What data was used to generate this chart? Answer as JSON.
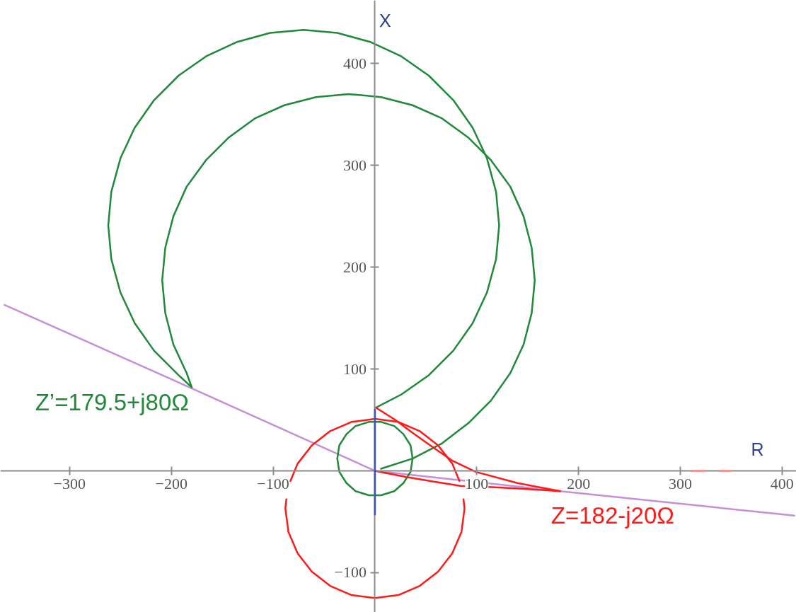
{
  "chart_data": {
    "type": "line",
    "xlabel": "R",
    "ylabel": "X",
    "xlim": [
      -368,
      414
    ],
    "ylim": [
      -139,
      462
    ],
    "xticks": [
      {
        "value": -300,
        "label": "−300"
      },
      {
        "value": -200,
        "label": "−200"
      },
      {
        "value": -100,
        "label": "−100"
      },
      100,
      200,
      300,
      400
    ],
    "yticks": [
      {
        "value": -100,
        "label": "−100"
      },
      100,
      200,
      300,
      400
    ],
    "grid": false,
    "annotations": [
      {
        "text": "Z’=179.5+j80Ω",
        "x": -180,
        "y": 82
      },
      {
        "text": "Z=182-j20Ω",
        "x": 182,
        "y": -20
      }
    ],
    "series": [
      {
        "color": "#c68fd6",
        "x": [
          -364,
          -180,
          0,
          182,
          412
        ],
        "values": [
          163,
          81,
          0,
          -20,
          -44
        ]
      },
      {
        "color": "#22883a",
        "x": [
          -180,
          -193,
          -217,
          -236,
          -250,
          -259,
          -262,
          -259,
          -250,
          -236,
          -217,
          -193,
          -166,
          -136,
          -103,
          -70,
          -37,
          -4,
          26,
          53,
          77,
          96,
          110,
          119,
          122,
          119,
          110,
          96,
          77,
          53,
          26,
          1
        ],
        "values": [
          82,
          94,
          118,
          145,
          175,
          208,
          241,
          274,
          307,
          337,
          364,
          388,
          407,
          421,
          430,
          433,
          430,
          421,
          407,
          388,
          364,
          337,
          307,
          274,
          241,
          208,
          175,
          145,
          118,
          94,
          75,
          62
        ]
      },
      {
        "color": "#22883a",
        "x": [
          -180,
          -185,
          -198,
          -206,
          -209,
          -206,
          -198,
          -185,
          -166,
          -144,
          -118,
          -89,
          -58,
          -26,
          6,
          37,
          66,
          92,
          114,
          133,
          146,
          154,
          157,
          154,
          146,
          133,
          114,
          92,
          66,
          37,
          6
        ],
        "values": [
          82,
          96,
          124,
          155,
          187,
          219,
          250,
          279,
          305,
          327,
          346,
          359,
          367,
          370,
          367,
          359,
          346,
          327,
          305,
          279,
          250,
          219,
          187,
          155,
          124,
          96,
          69,
          47,
          27,
          12,
          2
        ]
      },
      {
        "color": "#22883a",
        "x": [
          37,
          35,
          28,
          19,
          6,
          -6,
          -19,
          -28,
          -35,
          -37,
          -35,
          -28,
          -19,
          -6,
          6,
          19,
          28,
          35,
          37,
          35
        ],
        "values": [
          12,
          25,
          36,
          44,
          48,
          48,
          44,
          36,
          25,
          12,
          -1,
          -12,
          -20,
          -24,
          -24,
          -20,
          -12,
          -1,
          12,
          25
        ]
      },
      {
        "color": "#ff1a1a",
        "x": [
          83,
          76,
          62,
          44,
          23,
          0,
          -23,
          -44,
          -62,
          -76,
          -83,
          -85,
          -87,
          -88,
          -85,
          -76,
          -62,
          -44,
          -23,
          0,
          23,
          44,
          62,
          76,
          85,
          88,
          87
        ],
        "values": [
          -10,
          7,
          25,
          39,
          48,
          51,
          48,
          39,
          25,
          7,
          -10,
          null,
          -28,
          -37,
          -60,
          -81,
          -99,
          -113,
          -122,
          -125,
          -122,
          -113,
          -99,
          -81,
          -60,
          -37,
          -28
        ]
      },
      {
        "color": "#ff1a1a",
        "x": [
          1,
          20,
          36,
          57,
          76,
          99,
          140,
          182
        ],
        "values": [
          62,
          50,
          38,
          23,
          10,
          -1,
          -12,
          -20
        ]
      },
      {
        "color": "#ff1a1a",
        "x": [
          0,
          30,
          60,
          85,
          115,
          150,
          182
        ],
        "values": [
          0,
          -6,
          -11,
          -15,
          -16,
          -18,
          -20
        ]
      },
      {
        "color": "#ff8a8a",
        "x": [
          312,
          324,
          330,
          339,
          350
        ],
        "values": [
          0,
          0,
          null,
          0,
          0
        ]
      },
      {
        "color": "#3a55c8",
        "x": [
          0,
          0
        ],
        "values": [
          60,
          -43
        ]
      }
    ]
  }
}
